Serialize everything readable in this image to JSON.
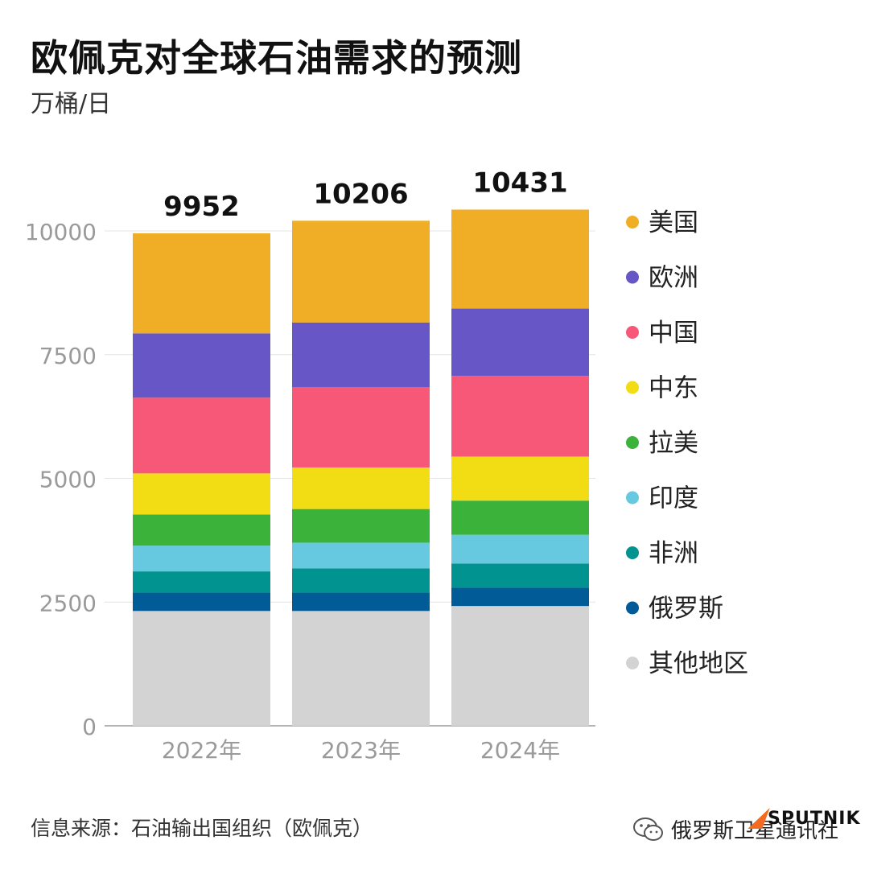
{
  "title": "欧佩克对全球石油需求的预测",
  "subtitle": "万桶/日",
  "source": "信息来源：石油输出国组织（欧佩克）",
  "watermark": {
    "text": "俄罗斯卫星通讯社",
    "logo": "SPUTNIK"
  },
  "chart_data": {
    "type": "bar",
    "stacked": true,
    "categories": [
      "2022年",
      "2023年",
      "2024年"
    ],
    "totals": [
      9952,
      10206,
      10431
    ],
    "ylim": [
      0,
      10000
    ],
    "yticks": [
      0,
      2500,
      5000,
      7500,
      10000
    ],
    "grid": true,
    "legend_position": "right",
    "series": [
      {
        "name": "其他地区",
        "color": "#d3d3d3",
        "values": [
          2320,
          2320,
          2420
        ]
      },
      {
        "name": "俄罗斯",
        "color": "#005b96",
        "values": [
          370,
          370,
          370
        ]
      },
      {
        "name": "非洲",
        "color": "#00938f",
        "values": [
          430,
          490,
          490
        ]
      },
      {
        "name": "印度",
        "color": "#66c9e0",
        "values": [
          520,
          520,
          580
        ]
      },
      {
        "name": "拉美",
        "color": "#3bb33b",
        "values": [
          630,
          680,
          690
        ]
      },
      {
        "name": "中东",
        "color": "#f2dc14",
        "values": [
          830,
          840,
          890
        ]
      },
      {
        "name": "中国",
        "color": "#f85878",
        "values": [
          1530,
          1620,
          1630
        ]
      },
      {
        "name": "欧洲",
        "color": "#6656c6",
        "values": [
          1300,
          1310,
          1360
        ]
      },
      {
        "name": "美国",
        "color": "#f0ad26",
        "values": [
          2022,
          2056,
          2001
        ]
      }
    ]
  }
}
